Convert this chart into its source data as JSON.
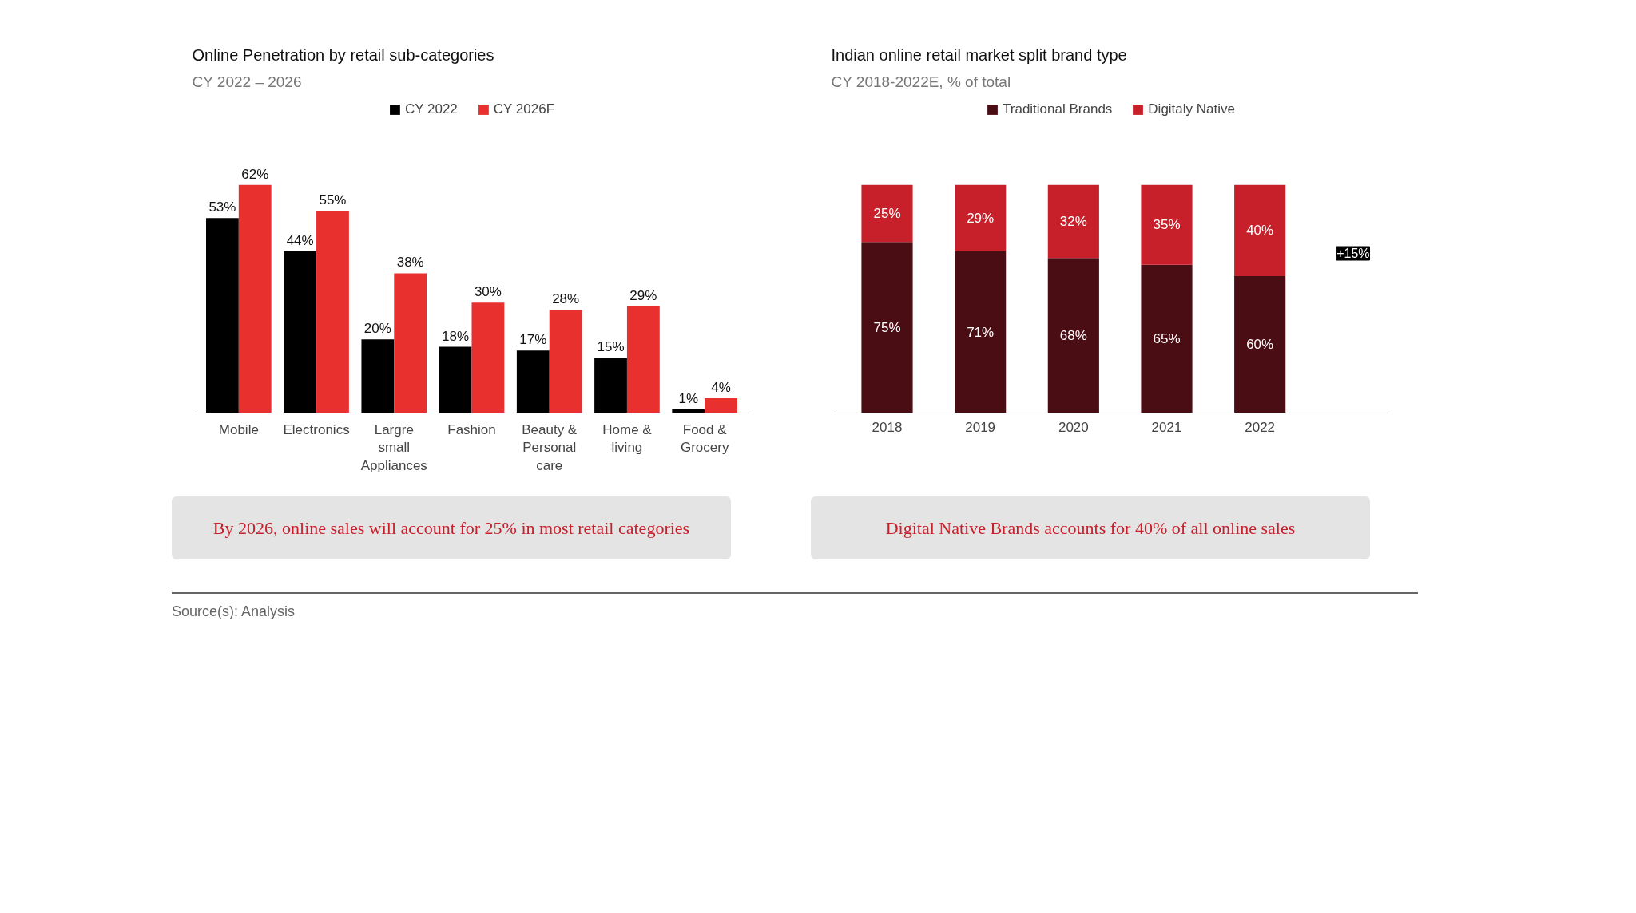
{
  "chart_data": [
    {
      "type": "bar",
      "title": "Online Penetration by retail sub-categories",
      "subtitle": "CY 2022 – 2026",
      "categories": [
        "Mobile",
        "Electronics",
        "Largre small Appliances",
        "Fashion",
        "Beauty & Personal care",
        "Home & living",
        "Food & Grocery"
      ],
      "series": [
        {
          "name": "CY 2022",
          "color": "#000000",
          "values": [
            53,
            44,
            20,
            18,
            17,
            15,
            1
          ],
          "value_labels": [
            "53%",
            "44%",
            "20%",
            "18%",
            "17%",
            "15%",
            "1%"
          ]
        },
        {
          "name": "CY 2026F",
          "color": "#e8302f",
          "values": [
            62,
            55,
            38,
            30,
            28,
            29,
            4
          ],
          "value_labels": [
            "62%",
            "55%",
            "38%",
            "30%",
            "28%",
            "29%",
            "4%"
          ]
        }
      ],
      "legend": "top",
      "annotations": [
        "By 2026, online sales will account for 25% in most retail categories"
      ]
    },
    {
      "type": "bar",
      "stacked": true,
      "title": "Indian online retail market split brand type",
      "subtitle": "CY 2018-2022E, % of total",
      "categories": [
        "2018",
        "2019",
        "2020",
        "2021",
        "2022"
      ],
      "series": [
        {
          "name": "Traditional Brands",
          "color": "#4a0d14",
          "values": [
            75,
            71,
            68,
            65,
            60
          ],
          "value_labels": [
            "75%",
            "71%",
            "68%",
            "65%",
            "60%"
          ]
        },
        {
          "name": "Digitaly Native",
          "color": "#c8202b",
          "values": [
            25,
            29,
            32,
            35,
            40
          ],
          "value_labels": [
            "25%",
            "29%",
            "32%",
            "35%",
            "40%"
          ]
        }
      ],
      "legend": "top",
      "annotations": [
        "+15%",
        "Digital Native Brands accounts for 40% of all online sales",
        "Source(s): Analysis"
      ]
    }
  ]
}
